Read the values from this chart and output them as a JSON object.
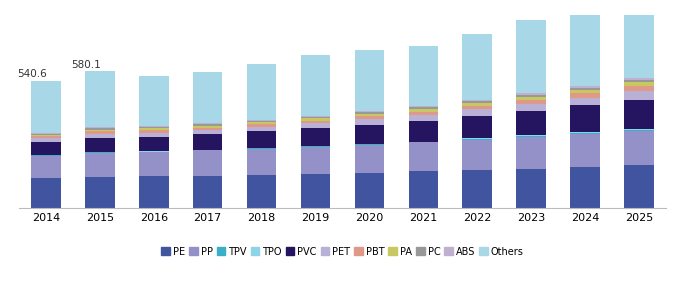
{
  "years": [
    2014,
    2015,
    2016,
    2017,
    2018,
    2019,
    2020,
    2021,
    2022,
    2023,
    2024,
    2025
  ],
  "annotations": {
    "2014": "540.6",
    "2015": "580.1"
  },
  "segments": {
    "PE": [
      125,
      132,
      133,
      136,
      140,
      144,
      149,
      154,
      160,
      166,
      173,
      180
    ],
    "PP": [
      95,
      102,
      103,
      107,
      110,
      114,
      118,
      123,
      129,
      135,
      141,
      148
    ],
    "TPV": [
      2,
      2,
      2,
      2,
      2,
      2,
      2,
      2,
      3,
      3,
      3,
      3
    ],
    "TPO": [
      2,
      2,
      2,
      2,
      2,
      2,
      2,
      2,
      3,
      3,
      3,
      3
    ],
    "PVC": [
      55,
      60,
      62,
      65,
      70,
      75,
      82,
      88,
      96,
      105,
      115,
      126
    ],
    "PET": [
      15,
      16,
      17,
      18,
      19,
      21,
      23,
      25,
      27,
      30,
      33,
      37
    ],
    "PBT": [
      9,
      10,
      10,
      10,
      11,
      12,
      13,
      14,
      15,
      16,
      18,
      20
    ],
    "PA": [
      7,
      8,
      8,
      9,
      9,
      10,
      11,
      12,
      13,
      14,
      15,
      17
    ],
    "PC": [
      4,
      5,
      5,
      5,
      5,
      6,
      6,
      7,
      7,
      8,
      9,
      9
    ],
    "ABS": [
      3,
      4,
      4,
      4,
      4,
      5,
      5,
      5,
      6,
      6,
      7,
      8
    ],
    "Others": [
      224,
      239,
      215,
      221,
      238,
      257,
      260,
      256,
      278,
      312,
      334,
      360
    ]
  },
  "colors": {
    "PE": "#4154a0",
    "PP": "#9490c8",
    "TPV": "#3baec8",
    "TPO": "#8dd4e8",
    "PVC": "#251560",
    "PET": "#b8b0d5",
    "PBT": "#e09888",
    "PA": "#c8c860",
    "PC": "#989898",
    "ABS": "#c0b0d0",
    "Others": "#a8d8e8"
  },
  "legend_labels": [
    "PE",
    "PP",
    "TPV",
    "TPO",
    "PVC",
    "PET",
    "PBT",
    "PA",
    "PC",
    "ABS",
    "Others"
  ],
  "background_color": "#ffffff",
  "ylim": [
    0,
    820
  ]
}
